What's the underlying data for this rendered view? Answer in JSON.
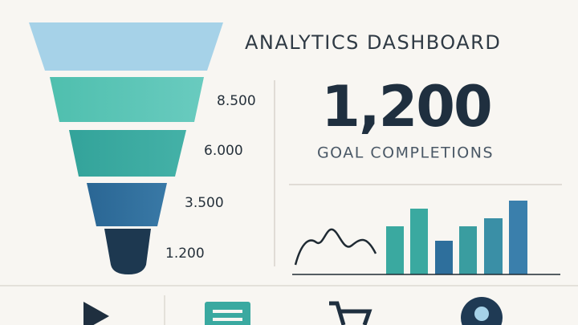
{
  "header": {
    "title": "ANALYTICS DASHBOARD"
  },
  "kpi": {
    "value": "1,200",
    "label": "GOAL COMPLETIONS"
  },
  "funnel": {
    "labels": [
      "8.500",
      "6.000",
      "3.500",
      "1.200"
    ]
  }
}
